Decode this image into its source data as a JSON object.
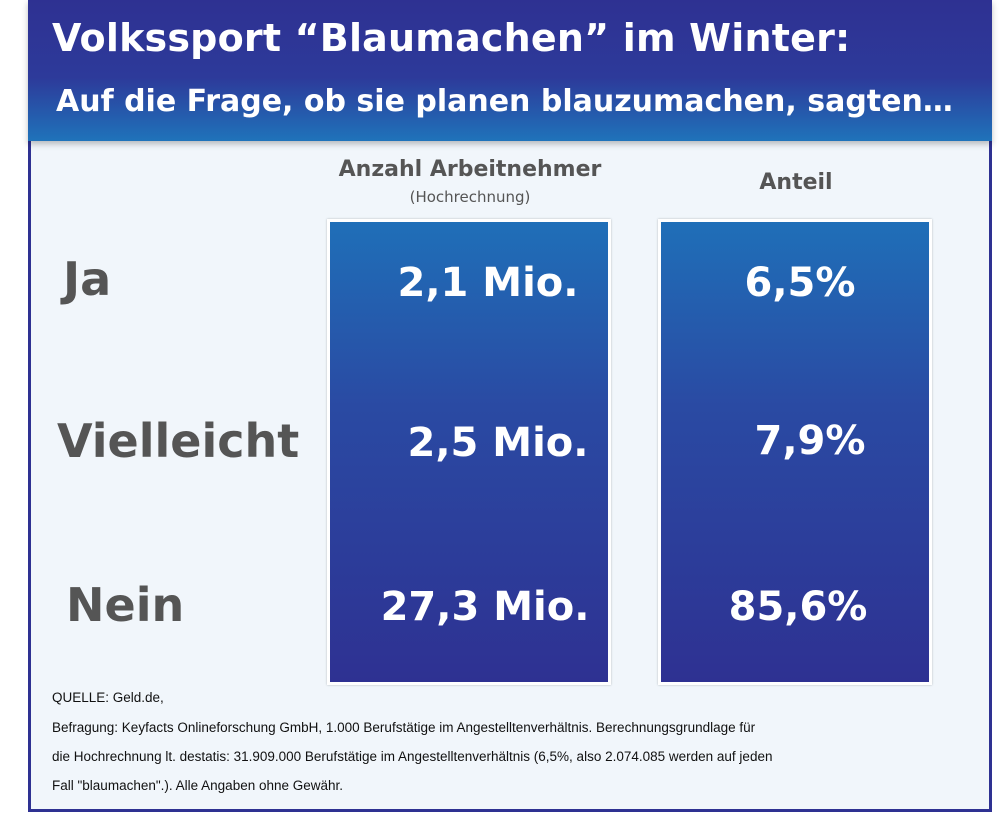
{
  "header": {
    "title": "Volkssport “Blaumachen” im Winter:",
    "subtitle": "Auf die Frage, ob sie planen blauzumachen, sagten…"
  },
  "chart_data": {
    "type": "table",
    "columns": [
      {
        "title": "Anzahl Arbeitnehmer",
        "subtitle": "(Hochrechnung)"
      },
      {
        "title": "Anteil",
        "subtitle": ""
      }
    ],
    "rows": [
      {
        "label": "Ja",
        "values": [
          "2,1 Mio.",
          "6,5%"
        ]
      },
      {
        "label": "Vielleicht",
        "values": [
          "2,5 Mio.",
          "7,9%"
        ]
      },
      {
        "label": "Nein",
        "values": [
          "27,3 Mio.",
          "85,6%"
        ]
      }
    ]
  },
  "footnote": {
    "lines": [
      "QUELLE: Geld.de,",
      "Befragung: Keyfacts Onlineforschung GmbH, 1.000 Berufstätige im Angestelltenverhältnis. Berechnungsgrundlage für",
      "die Hochrechnung lt. destatis: 31.909.000 Berufstätige im Angestelltenverhältnis (6,5%, also  2.074.085 werden auf jeden",
      "Fall \"blaumachen\".).  Alle Angaben ohne Gewähr."
    ]
  },
  "colors": {
    "header_dark": "#2e3192",
    "header_light": "#1f73ba",
    "panel_top": "#1f6fb8",
    "panel_bottom": "#2e3192",
    "background": "#f1f6fb",
    "label_gray": "#555555"
  }
}
